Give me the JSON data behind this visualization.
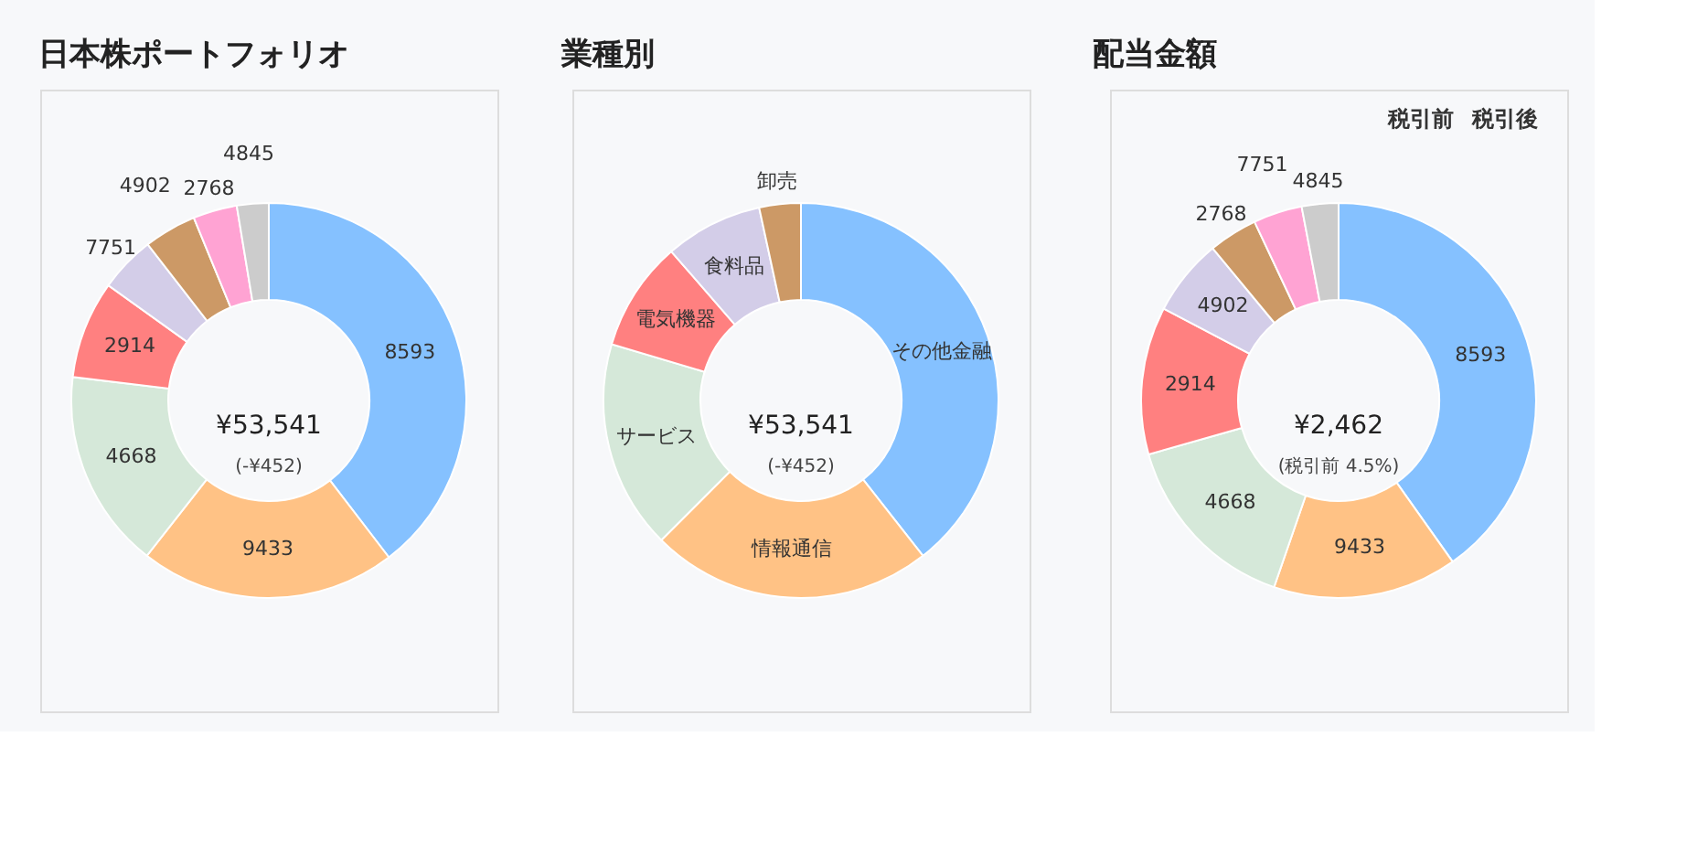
{
  "chart_data": [
    {
      "type": "donut",
      "title": "日本株ポートフォリオ",
      "categories": [
        "8593",
        "9433",
        "4668",
        "2914",
        "7751",
        "4902",
        "2768",
        "4845"
      ],
      "values": [
        39.6,
        21.0,
        16.3,
        8.0,
        4.6,
        4.3,
        3.6,
        2.6
      ],
      "colors": [
        "#85c1ff",
        "#ffc285",
        "#d5e8d9",
        "#ff8080",
        "#d3cde8",
        "#cc9966",
        "#ffa3d3",
        "#cccccc"
      ],
      "annotations": [
        "¥53,541",
        "(-¥452)"
      ]
    },
    {
      "type": "donut",
      "title": "業種別",
      "categories": [
        "その他金融",
        "情報通信",
        "サービス",
        "電気機器",
        "食料品",
        "卸売"
      ],
      "values": [
        39.4,
        23.1,
        17.1,
        9.0,
        8.0,
        3.4
      ],
      "colors": [
        "#85c1ff",
        "#ffc285",
        "#d5e8d9",
        "#ff8080",
        "#d3cde8",
        "#cc9966"
      ],
      "annotations": [
        "¥53,541",
        "(-¥452)"
      ]
    },
    {
      "type": "donut",
      "title": "配当金額",
      "categories": [
        "8593",
        "9433",
        "4668",
        "2914",
        "4902",
        "2768",
        "7751",
        "4845"
      ],
      "values": [
        40.2,
        15.1,
        15.3,
        12.1,
        6.3,
        4.0,
        4.0,
        3.0
      ],
      "colors": [
        "#85c1ff",
        "#ffc285",
        "#d5e8d9",
        "#ff8080",
        "#d3cde8",
        "#cc9966",
        "#ffa3d3",
        "#cccccc"
      ],
      "annotations": [
        "¥2,462",
        "(税引前 4.5%)",
        "税引前",
        "税引後"
      ]
    }
  ]
}
